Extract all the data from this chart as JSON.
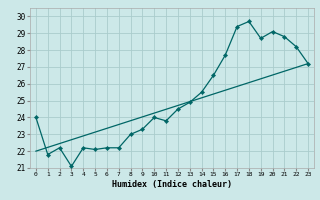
{
  "xlabel": "Humidex (Indice chaleur)",
  "bg_color": "#cce8e8",
  "grid_color": "#aacccc",
  "line_color": "#006666",
  "xlim": [
    -0.5,
    23.5
  ],
  "ylim": [
    21.0,
    30.5
  ],
  "yticks": [
    21,
    22,
    23,
    24,
    25,
    26,
    27,
    28,
    29,
    30
  ],
  "xticks": [
    0,
    1,
    2,
    3,
    4,
    5,
    6,
    7,
    8,
    9,
    10,
    11,
    12,
    13,
    14,
    15,
    16,
    17,
    18,
    19,
    20,
    21,
    22,
    23
  ],
  "curve1_x": [
    0,
    1,
    2,
    3,
    4,
    5,
    6,
    7,
    8,
    9,
    10,
    11,
    12,
    13,
    14,
    15,
    16,
    17,
    18,
    19,
    20,
    21,
    22,
    23
  ],
  "curve1_y": [
    24.0,
    21.8,
    22.2,
    21.1,
    22.2,
    22.1,
    22.2,
    22.2,
    23.0,
    23.3,
    24.0,
    23.8,
    24.5,
    24.9,
    25.5,
    26.5,
    27.7,
    29.4,
    29.7,
    28.7,
    29.1,
    28.8,
    28.2,
    27.2
  ],
  "curve2_x": [
    0,
    23
  ],
  "curve2_y": [
    22.0,
    27.2
  ]
}
